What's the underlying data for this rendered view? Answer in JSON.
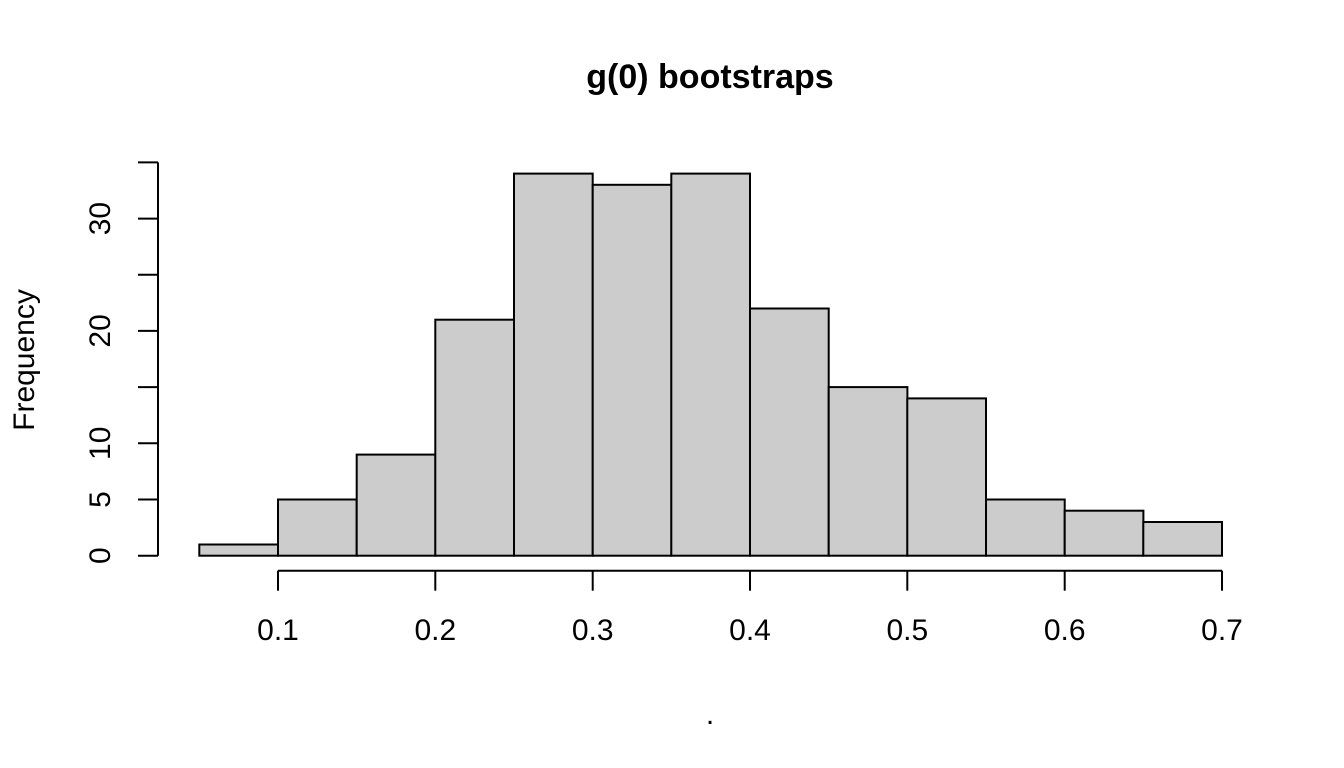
{
  "colors": {
    "bar_fill": "#cccccc",
    "bar_border": "#000000",
    "axis": "#000000",
    "text": "#000000",
    "background": "#ffffff"
  },
  "chart_data": {
    "type": "bar",
    "subtype": "histogram",
    "title": "g(0) bootstraps",
    "xlabel": ".",
    "ylabel": "Frequency",
    "bin_edges": [
      0.05,
      0.1,
      0.15,
      0.2,
      0.25,
      0.3,
      0.35,
      0.4,
      0.45,
      0.5,
      0.55,
      0.6,
      0.65,
      0.7
    ],
    "counts": [
      1,
      5,
      9,
      21,
      34,
      33,
      34,
      22,
      15,
      14,
      5,
      4,
      3
    ],
    "x_ticks": [
      0.1,
      0.2,
      0.3,
      0.4,
      0.5,
      0.6,
      0.7
    ],
    "x_tick_labels": [
      "0.1",
      "0.2",
      "0.3",
      "0.4",
      "0.5",
      "0.6",
      "0.7"
    ],
    "y_ticks": [
      0,
      5,
      10,
      15,
      20,
      25,
      30,
      35
    ],
    "y_tick_labels": [
      "0",
      "5",
      "10",
      "",
      "20",
      "",
      "30",
      ""
    ],
    "xlim": [
      0.05,
      0.7
    ],
    "ylim": [
      0,
      35
    ],
    "grid": false,
    "legend": "none"
  }
}
